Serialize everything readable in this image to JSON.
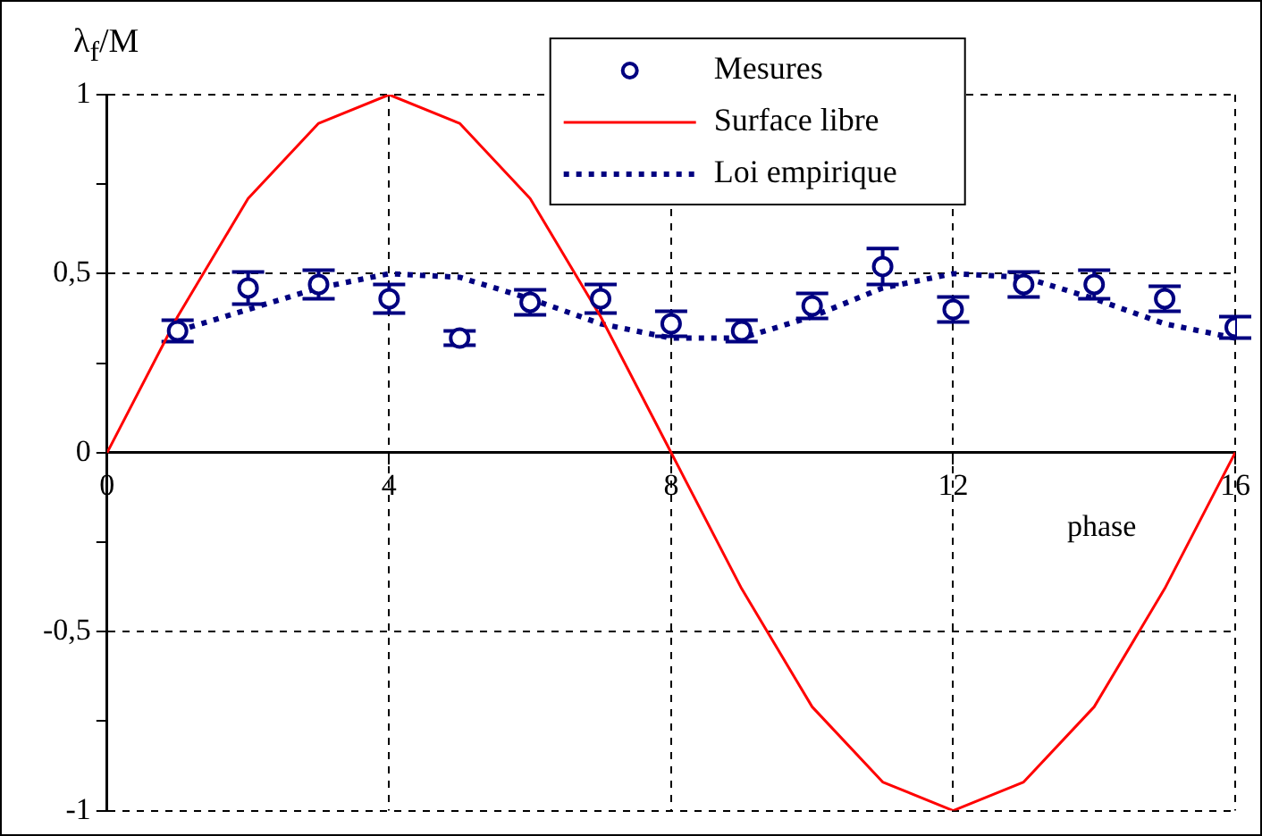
{
  "chart_data": {
    "type": "line",
    "ylabel": "λ$_{f}$/M",
    "xlabel": "phase",
    "xlim": [
      0,
      16
    ],
    "xticks": [
      0,
      4,
      8,
      12,
      16
    ],
    "ylim": [
      -1,
      1
    ],
    "yticks": [
      -1,
      {
        "value": -0.75,
        "label": null
      },
      {
        "value": -0.5,
        "label": "-0,5"
      },
      {
        "value": -0.25,
        "label": null
      },
      0,
      {
        "value": 0.25,
        "label": null
      },
      {
        "value": 0.5,
        "label": "0,5"
      },
      {
        "value": 0.75,
        "label": null
      },
      1
    ],
    "grid": true,
    "legend": "top",
    "series": [
      {
        "name": "Mesures",
        "type": "scatter",
        "marker": "circle",
        "color": "#000080",
        "x": [
          1,
          2,
          3,
          4,
          5,
          6,
          7,
          8,
          9,
          10,
          11,
          12,
          13,
          14,
          15,
          16
        ],
        "values": [
          0.34,
          0.46,
          0.47,
          0.43,
          0.32,
          0.42,
          0.43,
          0.36,
          0.34,
          0.41,
          0.52,
          0.4,
          0.47,
          0.47,
          0.43,
          0.35
        ],
        "errors": [
          0.03,
          0.045,
          0.04,
          0.04,
          0.02,
          0.035,
          0.04,
          0.035,
          0.03,
          0.035,
          0.05,
          0.035,
          0.035,
          0.04,
          0.035,
          0.03
        ]
      },
      {
        "name": "Surface libre",
        "type": "line",
        "line_style": "solid",
        "marker": "none",
        "color": "#ff0000",
        "x": [
          0,
          1,
          2,
          3,
          4,
          5,
          6,
          7,
          8,
          9,
          10,
          11,
          12,
          13,
          14,
          15,
          16
        ],
        "values": [
          0,
          0.38,
          0.71,
          0.92,
          1,
          0.92,
          0.71,
          0.38,
          0,
          -0.38,
          -0.71,
          -0.92,
          -1,
          -0.92,
          -0.71,
          -0.38,
          0
        ]
      },
      {
        "name": "Loi empirique",
        "type": "line",
        "line_style": "dotted",
        "marker": "none",
        "color": "#000080",
        "x": [
          1,
          2,
          3,
          4,
          5,
          6,
          7,
          8,
          9,
          10,
          11,
          12,
          13,
          14,
          15,
          16
        ],
        "values": [
          0.34,
          0.4,
          0.46,
          0.5,
          0.49,
          0.43,
          0.36,
          0.32,
          0.32,
          0.38,
          0.46,
          0.5,
          0.49,
          0.43,
          0.36,
          0.32
        ]
      }
    ]
  }
}
